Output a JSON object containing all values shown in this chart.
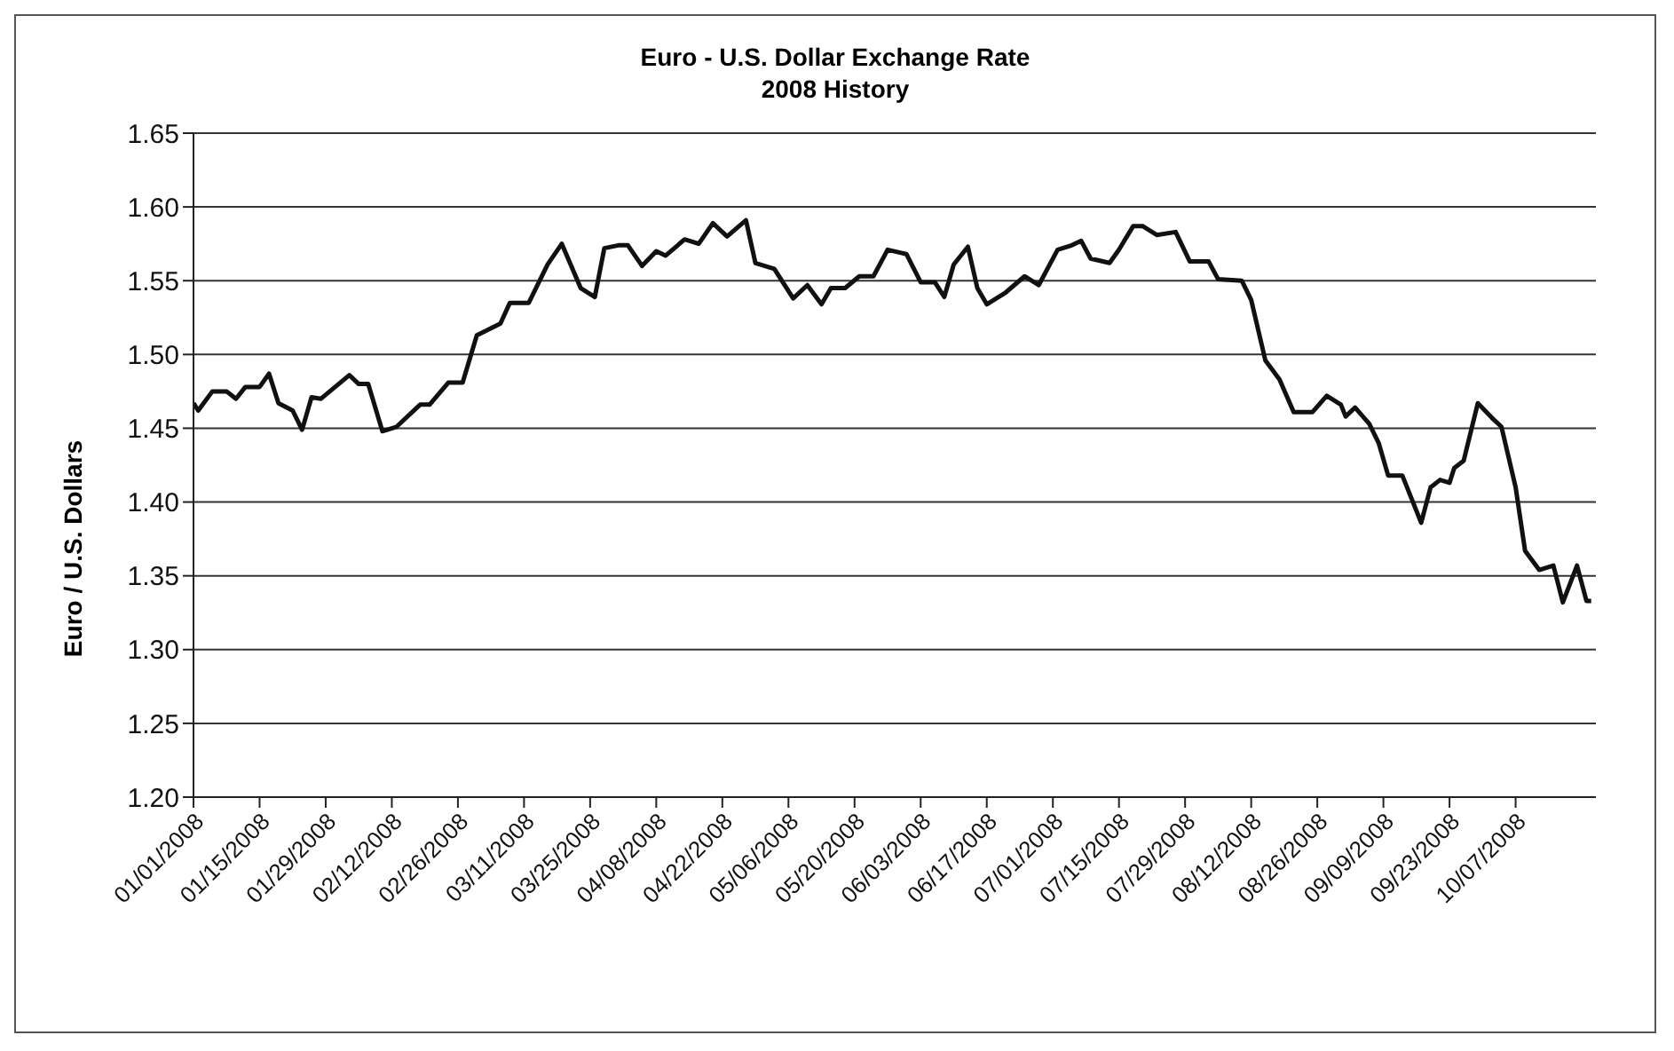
{
  "chart_data": {
    "type": "line",
    "title": "Euro - U.S. Dollar Exchange Rate",
    "subtitle": "2008 History",
    "ylabel": "Euro / U.S. Dollars",
    "x": [
      "2008-01-01",
      "2008-01-02",
      "2008-01-05",
      "2008-01-08",
      "2008-01-10",
      "2008-01-12",
      "2008-01-15",
      "2008-01-17",
      "2008-01-19",
      "2008-01-22",
      "2008-01-24",
      "2008-01-26",
      "2008-01-28",
      "2008-01-31",
      "2008-02-03",
      "2008-02-05",
      "2008-02-07",
      "2008-02-10",
      "2008-02-13",
      "2008-02-18",
      "2008-02-20",
      "2008-02-24",
      "2008-02-27",
      "2008-03-01",
      "2008-03-06",
      "2008-03-08",
      "2008-03-12",
      "2008-03-16",
      "2008-03-19",
      "2008-03-23",
      "2008-03-26",
      "2008-03-28",
      "2008-03-31",
      "2008-04-02",
      "2008-04-05",
      "2008-04-08",
      "2008-04-10",
      "2008-04-14",
      "2008-04-17",
      "2008-04-20",
      "2008-04-23",
      "2008-04-27",
      "2008-04-29",
      "2008-05-03",
      "2008-05-07",
      "2008-05-10",
      "2008-05-13",
      "2008-05-15",
      "2008-05-18",
      "2008-05-21",
      "2008-05-24",
      "2008-05-27",
      "2008-05-31",
      "2008-06-03",
      "2008-06-06",
      "2008-06-08",
      "2008-06-10",
      "2008-06-13",
      "2008-06-15",
      "2008-06-17",
      "2008-06-21",
      "2008-06-25",
      "2008-06-28",
      "2008-07-02",
      "2008-07-05",
      "2008-07-07",
      "2008-07-09",
      "2008-07-13",
      "2008-07-15",
      "2008-07-18",
      "2008-07-20",
      "2008-07-23",
      "2008-07-27",
      "2008-07-30",
      "2008-08-03",
      "2008-08-05",
      "2008-08-10",
      "2008-08-12",
      "2008-08-15",
      "2008-08-18",
      "2008-08-21",
      "2008-08-25",
      "2008-08-28",
      "2008-08-31",
      "2008-09-01",
      "2008-09-03",
      "2008-09-06",
      "2008-09-08",
      "2008-09-10",
      "2008-09-13",
      "2008-09-17",
      "2008-09-19",
      "2008-09-21",
      "2008-09-23",
      "2008-09-24",
      "2008-09-26",
      "2008-09-29",
      "2008-10-02",
      "2008-10-04",
      "2008-10-07",
      "2008-10-09",
      "2008-10-12",
      "2008-10-15",
      "2008-10-17",
      "2008-10-20",
      "2008-10-22",
      "2008-10-23"
    ],
    "series": [
      {
        "color": "#111111",
        "values": [
          1.467,
          1.462,
          1.475,
          1.475,
          1.47,
          1.478,
          1.478,
          1.487,
          1.467,
          1.462,
          1.449,
          1.471,
          1.47,
          1.478,
          1.486,
          1.48,
          1.48,
          1.448,
          1.451,
          1.466,
          1.466,
          1.481,
          1.481,
          1.513,
          1.521,
          1.535,
          1.535,
          1.561,
          1.575,
          1.545,
          1.539,
          1.572,
          1.574,
          1.574,
          1.56,
          1.57,
          1.567,
          1.578,
          1.575,
          1.589,
          1.58,
          1.591,
          1.562,
          1.558,
          1.538,
          1.547,
          1.534,
          1.545,
          1.545,
          1.553,
          1.553,
          1.571,
          1.568,
          1.549,
          1.549,
          1.539,
          1.561,
          1.573,
          1.545,
          1.534,
          1.542,
          1.553,
          1.547,
          1.571,
          1.574,
          1.577,
          1.565,
          1.562,
          1.571,
          1.587,
          1.587,
          1.581,
          1.583,
          1.563,
          1.563,
          1.551,
          1.55,
          1.537,
          1.496,
          1.483,
          1.461,
          1.461,
          1.472,
          1.466,
          1.458,
          1.464,
          1.453,
          1.44,
          1.418,
          1.418,
          1.386,
          1.41,
          1.415,
          1.413,
          1.423,
          1.428,
          1.467,
          1.457,
          1.451,
          1.41,
          1.367,
          1.354,
          1.357,
          1.332,
          1.357,
          1.333,
          1.333
        ]
      }
    ],
    "xlim": [
      "2008-01-01",
      "2008-10-24"
    ],
    "xticks": [
      {
        "value": "2008-01-01",
        "label": "01/01/2008"
      },
      {
        "value": "2008-01-15",
        "label": "01/15/2008"
      },
      {
        "value": "2008-01-29",
        "label": "01/29/2008"
      },
      {
        "value": "2008-02-12",
        "label": "02/12/2008"
      },
      {
        "value": "2008-02-26",
        "label": "02/26/2008"
      },
      {
        "value": "2008-03-11",
        "label": "03/11/2008"
      },
      {
        "value": "2008-03-25",
        "label": "03/25/2008"
      },
      {
        "value": "2008-04-08",
        "label": "04/08/2008"
      },
      {
        "value": "2008-04-22",
        "label": "04/22/2008"
      },
      {
        "value": "2008-05-06",
        "label": "05/06/2008"
      },
      {
        "value": "2008-05-20",
        "label": "05/20/2008"
      },
      {
        "value": "2008-06-03",
        "label": "06/03/2008"
      },
      {
        "value": "2008-06-17",
        "label": "06/17/2008"
      },
      {
        "value": "2008-07-01",
        "label": "07/01/2008"
      },
      {
        "value": "2008-07-15",
        "label": "07/15/2008"
      },
      {
        "value": "2008-07-29",
        "label": "07/29/2008"
      },
      {
        "value": "2008-08-12",
        "label": "08/12/2008"
      },
      {
        "value": "2008-08-26",
        "label": "08/26/2008"
      },
      {
        "value": "2008-09-09",
        "label": "09/09/2008"
      },
      {
        "value": "2008-09-23",
        "label": "09/23/2008"
      },
      {
        "value": "2008-10-07",
        "label": "10/07/2008"
      }
    ],
    "ylim": [
      1.2,
      1.65
    ],
    "yticks": [
      {
        "value": 1.2,
        "label": "1.20"
      },
      {
        "value": 1.25,
        "label": "1.25"
      },
      {
        "value": 1.3,
        "label": "1.30"
      },
      {
        "value": 1.35,
        "label": "1.35"
      },
      {
        "value": 1.4,
        "label": "1.40"
      },
      {
        "value": 1.45,
        "label": "1.45"
      },
      {
        "value": 1.5,
        "label": "1.50"
      },
      {
        "value": 1.55,
        "label": "1.55"
      },
      {
        "value": 1.6,
        "label": "1.60"
      },
      {
        "value": 1.65,
        "label": "1.65"
      }
    ],
    "grid": "y",
    "legend": false,
    "marker": "none",
    "line_style": "solid"
  }
}
